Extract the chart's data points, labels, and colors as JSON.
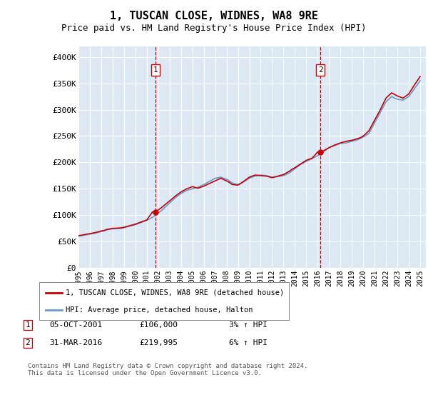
{
  "title": "1, TUSCAN CLOSE, WIDNES, WA8 9RE",
  "subtitle": "Price paid vs. HM Land Registry's House Price Index (HPI)",
  "title_fontsize": 11,
  "subtitle_fontsize": 9,
  "bg_color": "#dce9f5",
  "grid_color": "#ffffff",
  "ylabel_ticks": [
    "£0",
    "£50K",
    "£100K",
    "£150K",
    "£200K",
    "£250K",
    "£300K",
    "£350K",
    "£400K"
  ],
  "ytick_values": [
    0,
    50000,
    100000,
    150000,
    200000,
    250000,
    300000,
    350000,
    400000
  ],
  "ylim": [
    0,
    420000
  ],
  "xlim_start": 1995.0,
  "xlim_end": 2025.5,
  "xtick_years": [
    1995,
    1996,
    1997,
    1998,
    1999,
    2000,
    2001,
    2002,
    2003,
    2004,
    2005,
    2006,
    2007,
    2008,
    2009,
    2010,
    2011,
    2012,
    2013,
    2014,
    2015,
    2016,
    2017,
    2018,
    2019,
    2020,
    2021,
    2022,
    2023,
    2024,
    2025
  ],
  "legend_line1": "1, TUSCAN CLOSE, WIDNES, WA8 9RE (detached house)",
  "legend_line2": "HPI: Average price, detached house, Halton",
  "line1_color": "#cc0000",
  "line2_color": "#6699cc",
  "vline_color": "#cc0000",
  "vline1_x": 2001.75,
  "vline2_x": 2016.25,
  "marker1_x": 2001.75,
  "marker1_y": 106000,
  "marker2_x": 2016.25,
  "marker2_y": 219995,
  "table_rows": [
    [
      "1",
      "05-OCT-2001",
      "£106,000",
      "3% ↑ HPI"
    ],
    [
      "2",
      "31-MAR-2016",
      "£219,995",
      "6% ↑ HPI"
    ]
  ],
  "footnote": "Contains HM Land Registry data © Crown copyright and database right 2024.\nThis data is licensed under the Open Government Licence v3.0.",
  "hpi_data": {
    "years": [
      1995.0,
      1995.25,
      1995.5,
      1995.75,
      1996.0,
      1996.25,
      1996.5,
      1996.75,
      1997.0,
      1997.25,
      1997.5,
      1997.75,
      1998.0,
      1998.25,
      1998.5,
      1998.75,
      1999.0,
      1999.25,
      1999.5,
      1999.75,
      2000.0,
      2000.25,
      2000.5,
      2000.75,
      2001.0,
      2001.25,
      2001.5,
      2001.75,
      2002.0,
      2002.25,
      2002.5,
      2002.75,
      2003.0,
      2003.25,
      2003.5,
      2003.75,
      2004.0,
      2004.25,
      2004.5,
      2004.75,
      2005.0,
      2005.25,
      2005.5,
      2005.75,
      2006.0,
      2006.25,
      2006.5,
      2006.75,
      2007.0,
      2007.25,
      2007.5,
      2007.75,
      2008.0,
      2008.25,
      2008.5,
      2008.75,
      2009.0,
      2009.25,
      2009.5,
      2009.75,
      2010.0,
      2010.25,
      2010.5,
      2010.75,
      2011.0,
      2011.25,
      2011.5,
      2011.75,
      2012.0,
      2012.25,
      2012.5,
      2012.75,
      2013.0,
      2013.25,
      2013.5,
      2013.75,
      2014.0,
      2014.25,
      2014.5,
      2014.75,
      2015.0,
      2015.25,
      2015.5,
      2015.75,
      2016.0,
      2016.25,
      2016.5,
      2016.75,
      2017.0,
      2017.25,
      2017.5,
      2017.75,
      2018.0,
      2018.25,
      2018.5,
      2018.75,
      2019.0,
      2019.25,
      2019.5,
      2019.75,
      2020.0,
      2020.25,
      2020.5,
      2020.75,
      2021.0,
      2021.25,
      2021.5,
      2021.75,
      2022.0,
      2022.25,
      2022.5,
      2022.75,
      2023.0,
      2023.25,
      2023.5,
      2023.75,
      2024.0,
      2024.25,
      2024.5,
      2024.75,
      2025.0
    ],
    "values": [
      60000,
      61000,
      62000,
      63000,
      64000,
      65000,
      66000,
      67500,
      69000,
      70000,
      72000,
      73000,
      74000,
      74200,
      74500,
      75000,
      76000,
      77500,
      79000,
      80500,
      82000,
      84000,
      86000,
      88000,
      90000,
      93000,
      96000,
      100000,
      104000,
      108000,
      113000,
      118000,
      123000,
      128000,
      133000,
      137000,
      141000,
      144000,
      147000,
      148500,
      150000,
      151500,
      153000,
      155500,
      158000,
      161000,
      164000,
      167000,
      170000,
      171000,
      172000,
      170000,
      168000,
      165000,
      161000,
      159500,
      158000,
      160000,
      163000,
      166500,
      170000,
      172000,
      174000,
      175000,
      176000,
      175500,
      175000,
      173500,
      172000,
      172500,
      173000,
      174000,
      175000,
      177500,
      180000,
      184000,
      188000,
      192000,
      196000,
      199000,
      202000,
      204500,
      207000,
      210000,
      213000,
      216500,
      220000,
      224000,
      228000,
      230000,
      232000,
      234000,
      236000,
      236500,
      237000,
      238500,
      240000,
      241500,
      243000,
      245500,
      248000,
      251500,
      255000,
      265000,
      275000,
      285000,
      295000,
      305000,
      315000,
      320000,
      325000,
      322000,
      320000,
      319000,
      318000,
      321500,
      325000,
      332500,
      340000,
      347500,
      355000
    ]
  },
  "price_data": {
    "years": [
      1995.0,
      1995.25,
      1995.5,
      1995.75,
      1996.0,
      1996.25,
      1996.5,
      1996.75,
      1997.0,
      1997.25,
      1997.5,
      1997.75,
      1998.0,
      1998.25,
      1998.5,
      1998.75,
      1999.0,
      1999.25,
      1999.5,
      1999.75,
      2000.0,
      2000.25,
      2000.5,
      2000.75,
      2001.0,
      2001.25,
      2001.5,
      2001.75,
      2002.0,
      2002.25,
      2002.5,
      2002.75,
      2003.0,
      2003.25,
      2003.5,
      2003.75,
      2004.0,
      2004.25,
      2004.5,
      2004.75,
      2005.0,
      2005.25,
      2005.5,
      2005.75,
      2006.0,
      2006.25,
      2006.5,
      2006.75,
      2007.0,
      2007.25,
      2007.5,
      2007.75,
      2008.0,
      2008.25,
      2008.5,
      2008.75,
      2009.0,
      2009.25,
      2009.5,
      2009.75,
      2010.0,
      2010.25,
      2010.5,
      2010.75,
      2011.0,
      2011.25,
      2011.5,
      2011.75,
      2012.0,
      2012.25,
      2012.5,
      2012.75,
      2013.0,
      2013.25,
      2013.5,
      2013.75,
      2014.0,
      2014.25,
      2014.5,
      2014.75,
      2015.0,
      2015.25,
      2015.5,
      2015.75,
      2016.0,
      2016.25,
      2016.5,
      2016.75,
      2017.0,
      2017.25,
      2017.5,
      2017.75,
      2018.0,
      2018.25,
      2018.5,
      2018.75,
      2019.0,
      2019.25,
      2019.5,
      2019.75,
      2020.0,
      2020.25,
      2020.5,
      2020.75,
      2021.0,
      2021.25,
      2021.5,
      2021.75,
      2022.0,
      2022.25,
      2022.5,
      2022.75,
      2023.0,
      2023.25,
      2023.5,
      2023.75,
      2024.0,
      2024.25,
      2024.5,
      2024.75,
      2025.0
    ],
    "values": [
      61000,
      62000,
      63000,
      64000,
      65000,
      66000,
      67000,
      68500,
      70000,
      71000,
      73000,
      74000,
      75000,
      75200,
      75500,
      76000,
      77000,
      78500,
      80000,
      81500,
      83000,
      85000,
      87000,
      89000,
      91000,
      98500,
      106000,
      106000,
      110000,
      113500,
      118000,
      122500,
      127000,
      131500,
      136000,
      140000,
      144000,
      147000,
      150000,
      152000,
      154000,
      152500,
      151000,
      153000,
      155000,
      157500,
      160000,
      162500,
      165000,
      167500,
      170000,
      167500,
      165000,
      162000,
      158000,
      157500,
      157000,
      160500,
      164000,
      168000,
      172000,
      174000,
      176000,
      175500,
      175000,
      174500,
      174000,
      172500,
      171000,
      172500,
      174000,
      175500,
      177000,
      180000,
      183000,
      187000,
      190000,
      193500,
      197000,
      200500,
      204000,
      206000,
      208000,
      213500,
      219995,
      219995,
      222000,
      225000,
      228000,
      230500,
      233000,
      235000,
      237000,
      238500,
      240000,
      241000,
      242000,
      243500,
      245000,
      247000,
      250000,
      255000,
      260000,
      270000,
      280000,
      290000,
      300000,
      311000,
      322000,
      327000,
      332000,
      329000,
      326000,
      324000,
      322000,
      326000,
      330000,
      338500,
      347000,
      355000,
      363000
    ]
  }
}
